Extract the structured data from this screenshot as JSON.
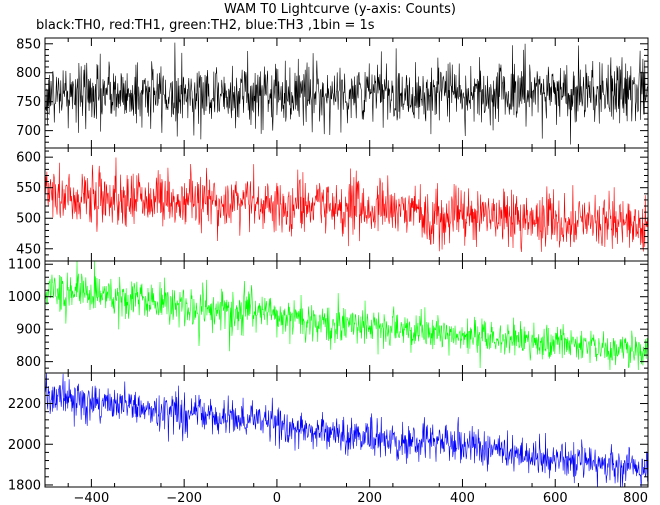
{
  "chart_data": {
    "type": "line",
    "title": "WAM T0 Lightcurve (y-axis: Counts)",
    "subtitle": "black:TH0, red:TH1, green:TH2, blue:TH3 ,1bin = 1s",
    "xlabel": "",
    "xlim": [
      -500,
      800
    ],
    "xticks": [
      -400,
      -200,
      0,
      200,
      400,
      600,
      800
    ],
    "x_step": 1,
    "noise_model": "per-bin Poisson-like scatter (sigma = sqrt(mean))",
    "panels": [
      {
        "name": "TH0",
        "color": "#000000",
        "ylabel": "",
        "ylim": [
          670,
          860
        ],
        "yticks": [
          700,
          750,
          800,
          850
        ],
        "trend": [
          [
            -500,
            763
          ],
          [
            0,
            763
          ],
          [
            800,
            768
          ]
        ]
      },
      {
        "name": "TH1",
        "color": "#ff0000",
        "ylabel": "",
        "ylim": [
          430,
          615
        ],
        "yticks": [
          450,
          500,
          550,
          600
        ],
        "trend": [
          [
            -500,
            538
          ],
          [
            -200,
            530
          ],
          [
            0,
            522
          ],
          [
            400,
            505
          ],
          [
            800,
            490
          ]
        ]
      },
      {
        "name": "TH2",
        "color": "#00ff00",
        "ylabel": "",
        "ylim": [
          765,
          1110
        ],
        "yticks": [
          800,
          900,
          1000,
          1100
        ],
        "trend": [
          [
            -500,
            1020
          ],
          [
            -300,
            990
          ],
          [
            -100,
            960
          ],
          [
            100,
            920
          ],
          [
            400,
            880
          ],
          [
            800,
            830
          ]
        ]
      },
      {
        "name": "TH3",
        "color": "#0000ff",
        "ylabel": "",
        "ylim": [
          1790,
          2350
        ],
        "yticks": [
          1800,
          2000,
          2200
        ],
        "trend": [
          [
            -500,
            2230
          ],
          [
            -300,
            2180
          ],
          [
            -100,
            2130
          ],
          [
            100,
            2060
          ],
          [
            400,
            1990
          ],
          [
            800,
            1880
          ]
        ]
      }
    ]
  }
}
